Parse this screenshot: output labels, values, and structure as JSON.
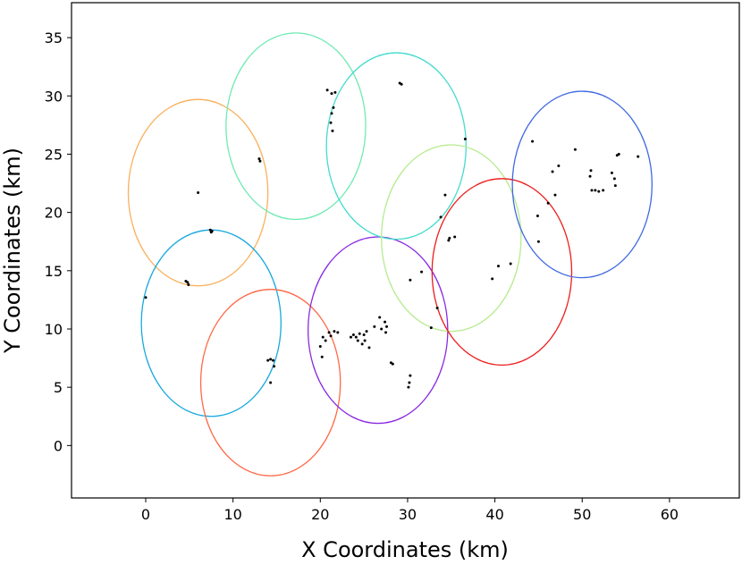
{
  "chart_data": {
    "type": "scatter",
    "title": "",
    "xlabel": "X Coordinates (km)",
    "ylabel": "Y Coordinates (km)",
    "xlim": [
      -8.5,
      68
    ],
    "ylim": [
      -4.5,
      38
    ],
    "xticks": [
      0,
      10,
      20,
      30,
      40,
      50,
      60
    ],
    "yticks": [
      0,
      5,
      10,
      15,
      20,
      25,
      30,
      35
    ],
    "grid": false,
    "legend": "none",
    "point_color": "#000000",
    "points": [
      [
        0.0,
        12.7
      ],
      [
        4.6,
        14.1
      ],
      [
        4.8,
        14.0
      ],
      [
        4.9,
        13.8
      ],
      [
        6.0,
        21.7
      ],
      [
        7.4,
        18.5
      ],
      [
        7.5,
        18.3
      ],
      [
        7.6,
        18.4
      ],
      [
        13.0,
        24.6
      ],
      [
        13.1,
        24.4
      ],
      [
        14.0,
        7.3
      ],
      [
        14.3,
        7.4
      ],
      [
        14.6,
        7.3
      ],
      [
        14.3,
        5.4
      ],
      [
        14.7,
        6.8
      ],
      [
        20.8,
        30.5
      ],
      [
        21.3,
        30.2
      ],
      [
        21.7,
        30.3
      ],
      [
        21.5,
        29.0
      ],
      [
        21.3,
        28.5
      ],
      [
        21.2,
        27.7
      ],
      [
        21.4,
        27.0
      ],
      [
        20.0,
        8.5
      ],
      [
        20.2,
        7.6
      ],
      [
        20.3,
        9.3
      ],
      [
        20.6,
        9.0
      ],
      [
        21.0,
        9.7
      ],
      [
        21.2,
        9.4
      ],
      [
        21.6,
        9.8
      ],
      [
        22.0,
        9.7
      ],
      [
        23.5,
        9.3
      ],
      [
        23.8,
        9.5
      ],
      [
        24.1,
        9.3
      ],
      [
        24.3,
        9.0
      ],
      [
        24.5,
        9.6
      ],
      [
        24.8,
        8.7
      ],
      [
        25.0,
        9.5
      ],
      [
        25.3,
        9.8
      ],
      [
        25.6,
        8.4
      ],
      [
        25.1,
        9.0
      ],
      [
        26.2,
        10.2
      ],
      [
        26.8,
        11.0
      ],
      [
        27.0,
        10.0
      ],
      [
        27.4,
        10.6
      ],
      [
        27.6,
        10.2
      ],
      [
        27.5,
        9.7
      ],
      [
        28.1,
        7.1
      ],
      [
        28.3,
        7.0
      ],
      [
        29.1,
        31.1
      ],
      [
        29.3,
        31.0
      ],
      [
        30.3,
        6.0
      ],
      [
        30.2,
        5.4
      ],
      [
        30.1,
        5.0
      ],
      [
        30.3,
        14.2
      ],
      [
        31.6,
        14.9
      ],
      [
        32.7,
        10.1
      ],
      [
        33.4,
        11.8
      ],
      [
        33.8,
        19.6
      ],
      [
        34.3,
        21.5
      ],
      [
        34.7,
        17.6
      ],
      [
        34.8,
        17.8
      ],
      [
        35.4,
        17.9
      ],
      [
        36.6,
        26.3
      ],
      [
        39.7,
        14.3
      ],
      [
        40.4,
        15.4
      ],
      [
        41.8,
        15.6
      ],
      [
        44.3,
        26.1
      ],
      [
        44.9,
        19.7
      ],
      [
        45.0,
        17.5
      ],
      [
        46.1,
        20.8
      ],
      [
        46.6,
        23.5
      ],
      [
        46.9,
        21.5
      ],
      [
        47.3,
        24.0
      ],
      [
        49.2,
        25.4
      ],
      [
        50.9,
        23.1
      ],
      [
        51.0,
        23.6
      ],
      [
        51.1,
        21.9
      ],
      [
        51.5,
        21.9
      ],
      [
        51.9,
        21.8
      ],
      [
        52.4,
        21.9
      ],
      [
        53.4,
        23.4
      ],
      [
        53.7,
        22.9
      ],
      [
        53.8,
        22.3
      ],
      [
        54.0,
        24.9
      ],
      [
        54.2,
        25.0
      ],
      [
        56.4,
        24.8
      ]
    ],
    "circles": [
      {
        "cx": 6.0,
        "cy": 21.7,
        "rx": 8.0,
        "ry": 8.0,
        "color": "#f9b15e"
      },
      {
        "cx": 7.5,
        "cy": 10.5,
        "rx": 8.0,
        "ry": 8.0,
        "color": "#1aa9dd"
      },
      {
        "cx": 14.3,
        "cy": 5.4,
        "rx": 8.0,
        "ry": 8.0,
        "color": "#ff6a48"
      },
      {
        "cx": 17.2,
        "cy": 27.4,
        "rx": 8.0,
        "ry": 8.0,
        "color": "#72eab5"
      },
      {
        "cx": 26.6,
        "cy": 9.9,
        "rx": 8.0,
        "ry": 8.0,
        "color": "#8a2be2"
      },
      {
        "cx": 28.7,
        "cy": 25.7,
        "rx": 8.0,
        "ry": 8.0,
        "color": "#45dbcd"
      },
      {
        "cx": 35.0,
        "cy": 17.8,
        "rx": 8.0,
        "ry": 8.0,
        "color": "#b7eb90"
      },
      {
        "cx": 40.8,
        "cy": 14.9,
        "rx": 8.0,
        "ry": 8.0,
        "color": "#ee1c1c"
      },
      {
        "cx": 50.0,
        "cy": 22.4,
        "rx": 8.0,
        "ry": 8.0,
        "color": "#4169e1"
      }
    ]
  }
}
